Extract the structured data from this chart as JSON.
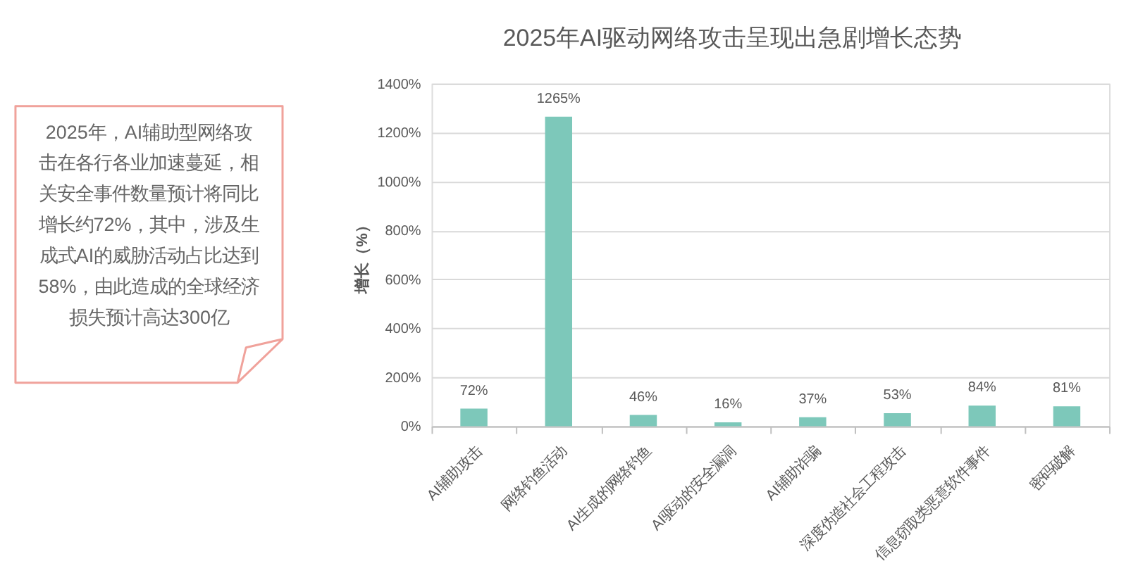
{
  "chart_data": {
    "type": "bar",
    "title": "2025年AI驱动网络攻击呈现出急剧增长态势",
    "ylabel": "增长（%）",
    "categories": [
      "AI辅助攻击",
      "网络钓鱼活动",
      "AI生成的网络钓鱼",
      "AI驱动的安全漏洞",
      "AI辅助诈骗",
      "深度伪造社会工程攻击",
      "信息窃取类恶意软件事件",
      "密码破解"
    ],
    "values": [
      72,
      1265,
      46,
      16,
      37,
      53,
      84,
      81
    ],
    "value_labels": [
      "72%",
      "1265%",
      "46%",
      "16%",
      "37%",
      "53%",
      "84%",
      "81%"
    ],
    "color": "#7dc8ba",
    "ylim": [
      0,
      1400
    ],
    "yticks": [
      {
        "value": 0,
        "label": "0%"
      },
      {
        "value": 200,
        "label": "200%"
      },
      {
        "value": 400,
        "label": "400%"
      },
      {
        "value": 600,
        "label": "600%"
      },
      {
        "value": 800,
        "label": "800%"
      },
      {
        "value": 1000,
        "label": "1000%"
      },
      {
        "value": 1200,
        "label": "1200%"
      },
      {
        "value": 1400,
        "label": "1400%"
      }
    ],
    "grid": "y",
    "annotations": [
      "2025年，AI辅助型网络攻击在各行各业加速蔓延，相关安全事件数量预计将同比增长约72%，其中，涉及生成式AI的威胁活动占比达到58%，由此造成的全球经济损失预计高达300亿"
    ]
  }
}
